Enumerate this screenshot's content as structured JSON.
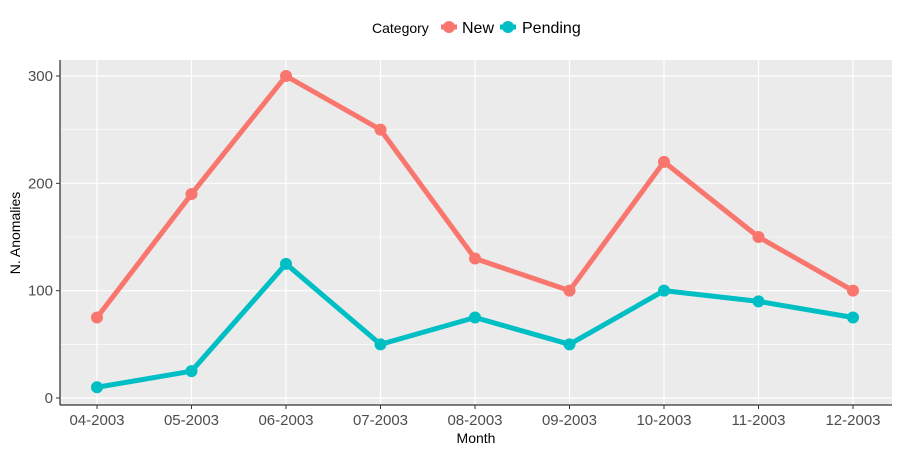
{
  "chart_data": {
    "type": "line",
    "title": "",
    "xlabel": "Month",
    "ylabel": "N. Anomalies",
    "categories": [
      "04-2003",
      "05-2003",
      "06-2003",
      "07-2003",
      "08-2003",
      "09-2003",
      "10-2003",
      "11-2003",
      "12-2003"
    ],
    "ylim": [
      0,
      300
    ],
    "yticks": [
      0,
      100,
      200,
      300
    ],
    "grid": true,
    "legend": {
      "title": "Category",
      "position": "top"
    },
    "series": [
      {
        "name": "New",
        "color": "#F8766D",
        "values": [
          75,
          190,
          300,
          250,
          130,
          100,
          220,
          150,
          100
        ]
      },
      {
        "name": "Pending",
        "color": "#00BFC4",
        "values": [
          10,
          25,
          125,
          50,
          75,
          50,
          100,
          90,
          75
        ]
      }
    ]
  }
}
